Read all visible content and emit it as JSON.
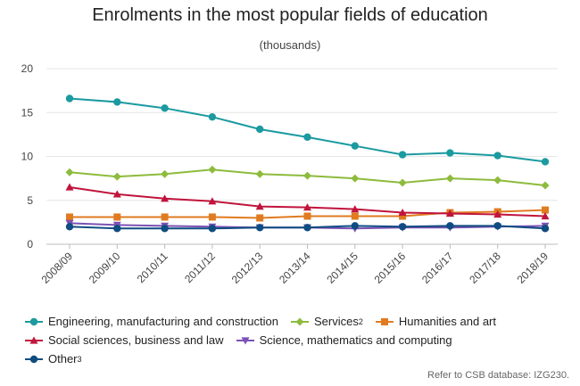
{
  "chart_data": {
    "type": "line",
    "title": "Enrolments in the most popular fields of education",
    "subtitle": "(thousands)",
    "xlabel": "",
    "ylabel": "",
    "ylim": [
      0,
      20
    ],
    "yticks": [
      0,
      5,
      10,
      15,
      20
    ],
    "grid": true,
    "legend_position": "bottom",
    "categories": [
      "2008/09",
      "2009/10",
      "2010/11",
      "2011/12",
      "2012/13",
      "2013/14",
      "2014/15",
      "2015/16",
      "2016/17",
      "2017/18",
      "2018/19"
    ],
    "series": [
      {
        "name": "Engineering, manufacturing and construction",
        "sup": "",
        "color": "#1b9aa0",
        "marker": "circle",
        "values": [
          16.6,
          16.2,
          15.5,
          14.5,
          13.1,
          12.2,
          11.2,
          10.2,
          10.4,
          10.1,
          9.4
        ]
      },
      {
        "name": "Services",
        "sup": "2",
        "color": "#8dbb3c",
        "marker": "diamond",
        "values": [
          8.2,
          7.7,
          8.0,
          8.5,
          8.0,
          7.8,
          7.5,
          7.0,
          7.5,
          7.3,
          6.7
        ]
      },
      {
        "name": "Humanities and art",
        "sup": "",
        "color": "#e07b20",
        "marker": "square",
        "values": [
          3.1,
          3.1,
          3.1,
          3.1,
          3.0,
          3.2,
          3.2,
          3.2,
          3.6,
          3.7,
          3.9
        ]
      },
      {
        "name": "Social sciences, business and law",
        "sup": "",
        "color": "#c0143c",
        "marker": "triangle-up",
        "values": [
          6.5,
          5.7,
          5.2,
          4.9,
          4.3,
          4.2,
          4.0,
          3.6,
          3.5,
          3.4,
          3.2
        ]
      },
      {
        "name": "Science, mathematics and computing",
        "sup": "",
        "color": "#7b52b3",
        "marker": "triangle-down",
        "values": [
          2.4,
          2.2,
          2.1,
          2.0,
          1.9,
          1.9,
          1.8,
          1.9,
          1.9,
          2.0,
          2.1
        ]
      },
      {
        "name": "Other",
        "sup": "3",
        "color": "#0f4c81",
        "marker": "circle",
        "values": [
          2.0,
          1.8,
          1.8,
          1.8,
          1.9,
          1.9,
          2.1,
          2.0,
          2.1,
          2.1,
          1.8
        ]
      }
    ]
  },
  "source_note": "Refer to CSB database: IZG230."
}
